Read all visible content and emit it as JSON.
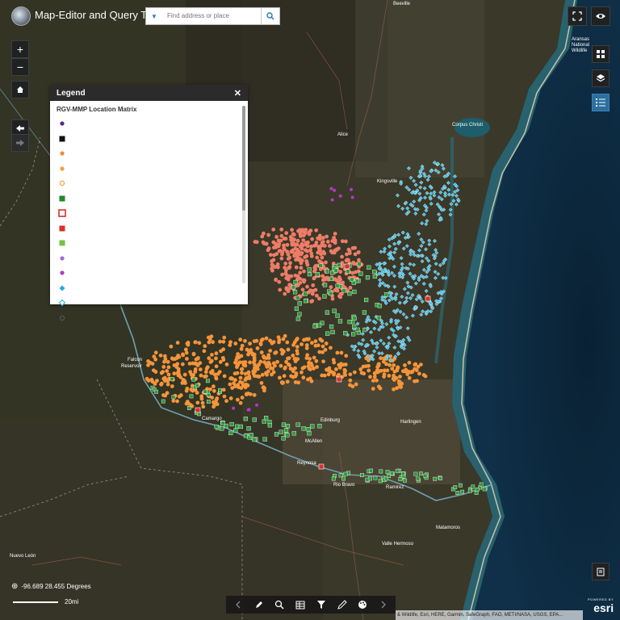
{
  "header": {
    "title": "Map-Editor and Query Tool"
  },
  "search": {
    "placeholder": "Find address or place"
  },
  "legend": {
    "title": "Legend",
    "close_symbol": "✕",
    "layer_title": "RGV-MMP Location Matrix",
    "items": [
      {
        "symbol": "circle",
        "color": "#5b2a86"
      },
      {
        "symbol": "square",
        "color": "#111111"
      },
      {
        "symbol": "circle",
        "color": "#f08a3c"
      },
      {
        "symbol": "circle",
        "color": "#f5a03a"
      },
      {
        "symbol": "circle-outline",
        "color": "#f5a03a"
      },
      {
        "symbol": "square",
        "color": "#1e8a2a"
      },
      {
        "symbol": "square-outline",
        "color": "#d9302b"
      },
      {
        "symbol": "square",
        "color": "#d9302b"
      },
      {
        "symbol": "square",
        "color": "#7ac045"
      },
      {
        "symbol": "circle",
        "color": "#a86ad6"
      },
      {
        "symbol": "circle",
        "color": "#b03bc2"
      },
      {
        "symbol": "diamond",
        "color": "#27a9e1"
      },
      {
        "symbol": "diamond-outline",
        "color": "#27a9e1"
      },
      {
        "symbol": "circle-outline",
        "color": "#555555"
      }
    ]
  },
  "map": {
    "place_labels": [
      "Corpus Christi",
      "Alice",
      "Kingsville",
      "McAllen",
      "Edinburg",
      "Harlingen",
      "Reynosa",
      "Rio Bravo",
      "Ramirez",
      "Matamoros",
      "Valle Hermoso",
      "Nuevo León",
      "Camargo",
      "Falcon Reservoir",
      "Aransas National Wildlife",
      "Beeville"
    ],
    "colors": {
      "land": "#3c3a2c",
      "water": "#0d2840",
      "nearshore": "#2f6f78",
      "orange": "#f5943a",
      "salmon": "#ee7c66",
      "cyan": "#43c0e8",
      "green": "#2f9a3a"
    }
  },
  "coordinates": {
    "text": "-96.689 28.455 Degrees"
  },
  "scale": {
    "label": "20mi"
  },
  "toolbar": {
    "icons": [
      "chevron-left-icon",
      "edit-icon",
      "query-icon",
      "table-icon",
      "filter-icon",
      "draw-icon",
      "palette-icon",
      "chevron-right-icon"
    ]
  },
  "attribution": {
    "text": "& Wildlife, Esri, HERE, Garmin, SafeGraph, FAO, METI/NASA, USGS, EPA..."
  },
  "branding": {
    "powered": "POWERED BY",
    "name": "esri"
  }
}
